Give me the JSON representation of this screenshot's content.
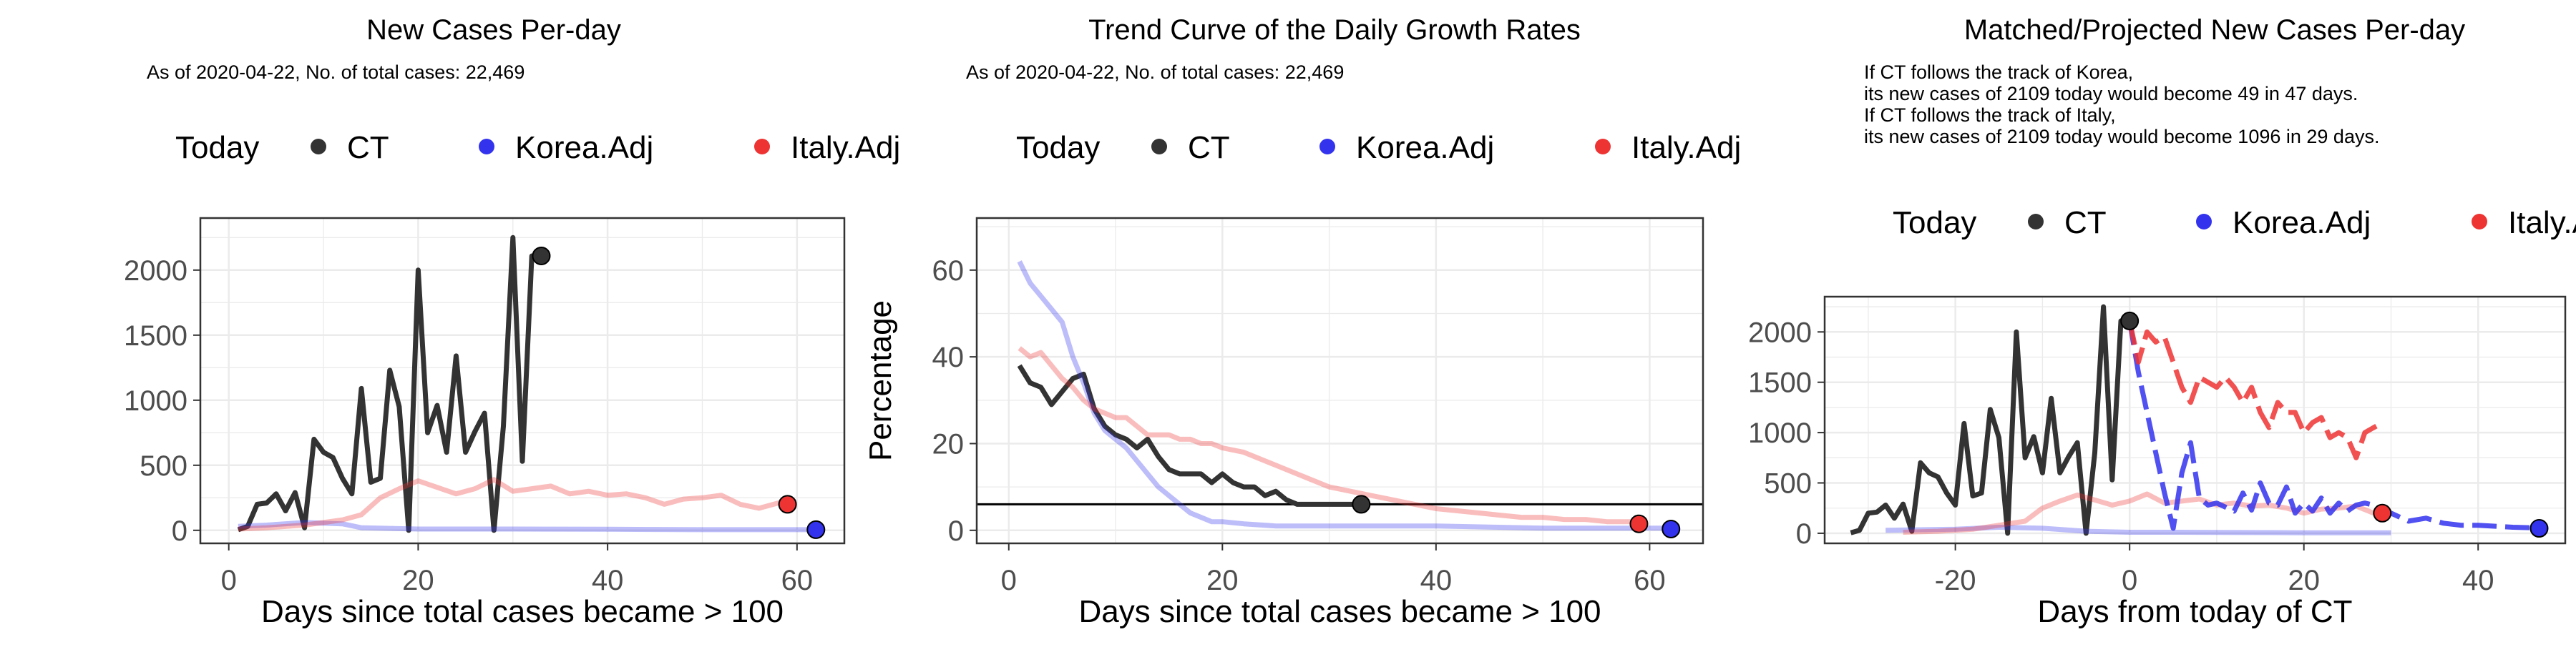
{
  "panels": [
    {
      "title": "New Cases Per-day",
      "subtitle_lines": [
        "As of 2020-04-22, No. of total cases: 22,469"
      ],
      "legend": {
        "title": "Today",
        "items": [
          "CT",
          "Korea.Adj",
          "Italy.Adj"
        ]
      },
      "xlabel": "Days since total cases became > 100",
      "ylabel": "",
      "xticks": [
        "0",
        "20",
        "40",
        "60"
      ],
      "yticks": [
        "0",
        "500",
        "1000",
        "1500",
        "2000"
      ]
    },
    {
      "title": "Trend Curve of the Daily Growth Rates",
      "subtitle_lines": [
        "As of 2020-04-22, No. of total cases: 22,469"
      ],
      "legend": {
        "title": "Today",
        "items": [
          "CT",
          "Korea.Adj",
          "Italy.Adj"
        ]
      },
      "xlabel": "Days since total cases became > 100",
      "ylabel": "Percentage",
      "xticks": [
        "0",
        "20",
        "40",
        "60"
      ],
      "yticks": [
        "0",
        "20",
        "40",
        "60"
      ]
    },
    {
      "title": "Matched/Projected New Cases Per-day",
      "subtitle_lines": [
        "If CT follows the track of Korea,",
        "its new cases of 2109 today would become 49 in 47 days.",
        "If CT follows the track of Italy,",
        "its new cases of 2109 today would become 1096 in 29 days."
      ],
      "legend": {
        "title": "Today",
        "items": [
          "CT",
          "Korea.Adj",
          "Italy.Adj"
        ]
      },
      "xlabel": "Days from today of CT",
      "ylabel": "",
      "xticks": [
        "-20",
        "0",
        "20",
        "40"
      ],
      "yticks": [
        "0",
        "500",
        "1000",
        "1500",
        "2000"
      ]
    }
  ],
  "colors": {
    "ct": "#333333",
    "korea": "#3333ee",
    "italy": "#ee3333",
    "grid": "#ebebeb",
    "frame": "#333333"
  },
  "chart_data": [
    {
      "type": "line",
      "title": "New Cases Per-day",
      "xlabel": "Days since total cases became > 100",
      "ylabel": "",
      "xlim": [
        -3,
        65
      ],
      "ylim": [
        -100,
        2400
      ],
      "series": [
        {
          "name": "CT",
          "x": [
            1,
            2,
            3,
            4,
            5,
            6,
            7,
            8,
            9,
            10,
            11,
            12,
            13,
            14,
            15,
            16,
            17,
            18,
            19,
            20,
            21,
            22,
            23,
            24,
            25,
            26,
            27,
            28,
            29,
            30,
            31,
            32,
            33
          ],
          "y": [
            5,
            30,
            200,
            210,
            280,
            150,
            290,
            20,
            700,
            600,
            560,
            400,
            280,
            1090,
            370,
            400,
            1230,
            950,
            0,
            2000,
            750,
            960,
            600,
            1340,
            600,
            760,
            900,
            0,
            800,
            2250,
            530,
            2109,
            2109
          ]
        },
        {
          "name": "Korea.Adj",
          "x": [
            1,
            4,
            8,
            12,
            14,
            20,
            30,
            40,
            50,
            62
          ],
          "y": [
            30,
            40,
            60,
            50,
            20,
            10,
            10,
            8,
            5,
            5
          ]
        },
        {
          "name": "Italy.Adj",
          "x": [
            1,
            4,
            8,
            12,
            14,
            16,
            18,
            20,
            22,
            24,
            26,
            28,
            30,
            32,
            34,
            36,
            38,
            40,
            42,
            44,
            46,
            48,
            50,
            52,
            54,
            56,
            58,
            59
          ],
          "y": [
            10,
            20,
            40,
            80,
            120,
            250,
            320,
            380,
            330,
            280,
            320,
            390,
            300,
            320,
            340,
            280,
            300,
            270,
            280,
            250,
            200,
            240,
            250,
            270,
            200,
            170,
            210,
            200
          ]
        },
        {
          "name": "Today",
          "points": [
            {
              "x": 33,
              "y": 2109,
              "color": "ct"
            },
            {
              "x": 62,
              "y": 5,
              "color": "korea"
            },
            {
              "x": 59,
              "y": 200,
              "color": "italy"
            }
          ]
        }
      ]
    },
    {
      "type": "line",
      "title": "Trend Curve of the Daily Growth Rates",
      "xlabel": "Days since total cases became > 100",
      "ylabel": "Percentage",
      "xlim": [
        -3,
        65
      ],
      "ylim": [
        -3,
        72
      ],
      "hline": 6,
      "series": [
        {
          "name": "CT",
          "x": [
            1,
            2,
            3,
            4,
            5,
            6,
            7,
            8,
            9,
            10,
            11,
            12,
            13,
            14,
            15,
            16,
            17,
            18,
            19,
            20,
            21,
            22,
            23,
            24,
            25,
            26,
            27,
            28,
            29,
            30,
            31,
            32,
            33
          ],
          "y": [
            38,
            34,
            33,
            29,
            32,
            35,
            36,
            28,
            24,
            22,
            21,
            19,
            21,
            17,
            14,
            13,
            13,
            13,
            11,
            13,
            11,
            10,
            10,
            8,
            9,
            7,
            6,
            6,
            6,
            6,
            6,
            6,
            6
          ]
        },
        {
          "name": "Korea.Adj",
          "x": [
            1,
            2,
            3,
            4,
            5,
            6,
            7,
            8,
            9,
            10,
            11,
            12,
            13,
            14,
            15,
            16,
            17,
            18,
            19,
            20,
            22,
            25,
            30,
            40,
            50,
            62
          ],
          "y": [
            62,
            57,
            54,
            51,
            48,
            40,
            34,
            27,
            23,
            21,
            19,
            16,
            13,
            10,
            8,
            6,
            4,
            3,
            2,
            2,
            1.5,
            1,
            1,
            1,
            0.5,
            0.5
          ]
        },
        {
          "name": "Italy.Adj",
          "x": [
            1,
            2,
            3,
            4,
            5,
            6,
            7,
            8,
            9,
            10,
            11,
            12,
            13,
            14,
            15,
            16,
            17,
            18,
            19,
            20,
            22,
            24,
            26,
            28,
            30,
            32,
            34,
            36,
            38,
            40,
            42,
            44,
            46,
            48,
            50,
            52,
            54,
            56,
            58,
            59
          ],
          "y": [
            42,
            40,
            41,
            38,
            35,
            33,
            30,
            28,
            27,
            26,
            26,
            24,
            22,
            22,
            22,
            21,
            21,
            20,
            20,
            19,
            18,
            16,
            14,
            12,
            10,
            9,
            8,
            7,
            6,
            5,
            4.5,
            4,
            3.5,
            3,
            3,
            2.5,
            2.5,
            2,
            2,
            2
          ]
        },
        {
          "name": "Today",
          "points": [
            {
              "x": 33,
              "y": 6,
              "color": "ct"
            },
            {
              "x": 62,
              "y": 0.3,
              "color": "korea"
            },
            {
              "x": 59,
              "y": 1.5,
              "color": "italy"
            }
          ]
        }
      ]
    },
    {
      "type": "line",
      "title": "Matched/Projected New Cases Per-day",
      "xlabel": "Days from today of CT",
      "ylabel": "",
      "xlim": [
        -35,
        50
      ],
      "ylim": [
        -100,
        2350
      ],
      "series": [
        {
          "name": "CT",
          "x": [
            -32,
            -31,
            -30,
            -29,
            -28,
            -27,
            -26,
            -25,
            -24,
            -23,
            -22,
            -21,
            -20,
            -19,
            -18,
            -17,
            -16,
            -15,
            -14,
            -13,
            -12,
            -11,
            -10,
            -9,
            -8,
            -7,
            -6,
            -5,
            -4,
            -3,
            -2,
            -1,
            0
          ],
          "y": [
            5,
            30,
            200,
            210,
            280,
            150,
            290,
            20,
            700,
            600,
            560,
            400,
            280,
            1090,
            370,
            400,
            1230,
            950,
            0,
            2000,
            750,
            960,
            600,
            1340,
            600,
            760,
            900,
            0,
            800,
            2250,
            530,
            2109,
            2109
          ]
        },
        {
          "name": "Korea.Adj (matched)",
          "x": [
            -28,
            -20,
            -15,
            -10,
            -5,
            0,
            5,
            10,
            20,
            30
          ],
          "y": [
            30,
            40,
            60,
            50,
            20,
            10,
            10,
            8,
            5,
            5
          ]
        },
        {
          "name": "Italy.Adj (matched)",
          "x": [
            -26,
            -22,
            -18,
            -15,
            -12,
            -10,
            -8,
            -6,
            -4,
            -2,
            0,
            2,
            4,
            6,
            8,
            10,
            12,
            14,
            16,
            18,
            20,
            22,
            24,
            26,
            28
          ],
          "y": [
            10,
            20,
            40,
            80,
            120,
            250,
            320,
            380,
            330,
            280,
            320,
            390,
            300,
            320,
            340,
            280,
            300,
            270,
            280,
            250,
            200,
            240,
            250,
            270,
            200
          ]
        },
        {
          "name": "Korea.Adj (projected)",
          "x": [
            0,
            1,
            2,
            3,
            4,
            5,
            6,
            7,
            8,
            9,
            10,
            11,
            12,
            13,
            14,
            15,
            16,
            17,
            18,
            19,
            20,
            21,
            22,
            23,
            24,
            25,
            26,
            27,
            28,
            29,
            30,
            32,
            34,
            36,
            38,
            40,
            42,
            44,
            46,
            47
          ],
          "y": [
            2109,
            1600,
            1200,
            800,
            400,
            50,
            600,
            900,
            350,
            280,
            300,
            260,
            220,
            400,
            230,
            500,
            300,
            280,
            460,
            200,
            300,
            220,
            350,
            200,
            300,
            220,
            280,
            300,
            280,
            240,
            200,
            120,
            150,
            100,
            80,
            80,
            70,
            60,
            55,
            49
          ]
        },
        {
          "name": "Italy.Adj (projected)",
          "x": [
            0,
            1,
            2,
            3,
            4,
            5,
            6,
            7,
            8,
            9,
            10,
            11,
            12,
            13,
            14,
            15,
            16,
            17,
            18,
            19,
            20,
            21,
            22,
            23,
            24,
            25,
            26,
            27,
            28,
            29
          ],
          "y": [
            2109,
            1700,
            2000,
            1900,
            1950,
            1700,
            1450,
            1300,
            1550,
            1500,
            1450,
            1550,
            1450,
            1300,
            1450,
            1200,
            1050,
            1300,
            1200,
            1200,
            1000,
            1100,
            1150,
            950,
            1000,
            950,
            750,
            1000,
            1050,
            1096
          ]
        },
        {
          "name": "Today",
          "points": [
            {
              "x": 0,
              "y": 2109,
              "color": "ct"
            },
            {
              "x": 47,
              "y": 49,
              "color": "korea"
            },
            {
              "x": 29,
              "y": 200,
              "color": "italy"
            }
          ]
        }
      ]
    }
  ]
}
